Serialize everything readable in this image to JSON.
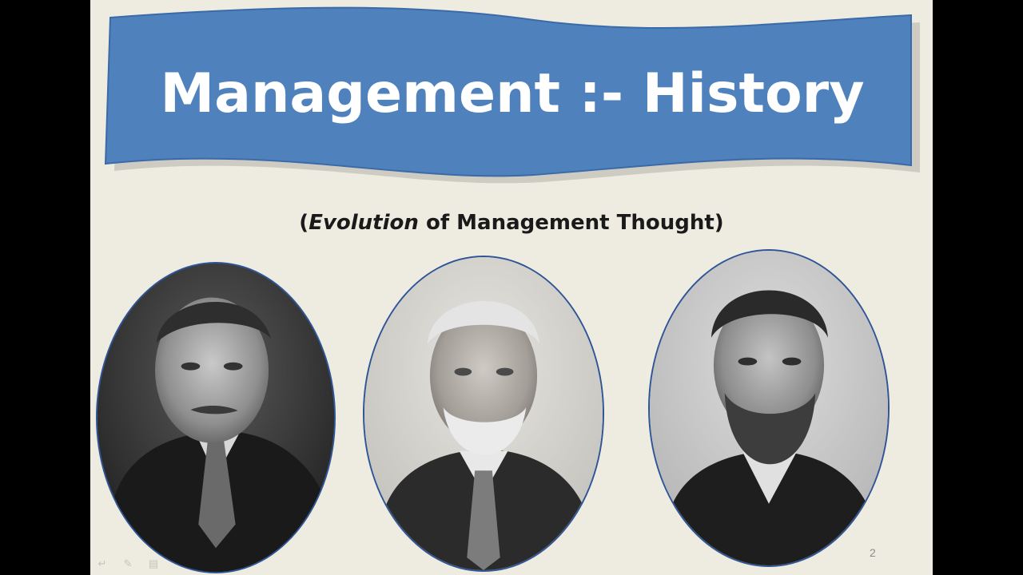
{
  "window": {
    "letterbox_color": "#000000",
    "slide_background": "#eeece1"
  },
  "slide": {
    "title": "Management :- History",
    "subtitle": {
      "open_paren": "(",
      "italic_word": "Evolution",
      "rest": " of Management Thought",
      "close_paren": ")"
    },
    "slide_number": "2",
    "banner_color": "#4f81bd",
    "banner_border_color": "#3b6aa8"
  },
  "portraits": [
    {
      "name": "portrait-left",
      "depicts": "man-with-moustache-photo-icon"
    },
    {
      "name": "portrait-center",
      "depicts": "white-bearded-man-photo-icon"
    },
    {
      "name": "portrait-right",
      "depicts": "bearded-man-photo-icon"
    }
  ],
  "nav_controls": [
    {
      "icon": "back-arrow-icon",
      "glyph": "↵"
    },
    {
      "icon": "pen-icon",
      "glyph": "✎"
    },
    {
      "icon": "menu-icon",
      "glyph": "▤"
    }
  ]
}
